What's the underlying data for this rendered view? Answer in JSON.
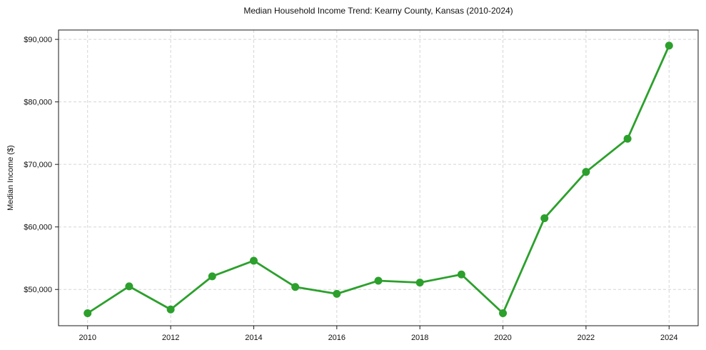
{
  "chart_data": {
    "type": "line",
    "title": "Median Household Income Trend: Kearny County, Kansas (2010-2024)",
    "ylabel": "Median Income ($)",
    "xlabel": "",
    "x": [
      2010,
      2011,
      2012,
      2013,
      2014,
      2015,
      2016,
      2017,
      2018,
      2019,
      2020,
      2021,
      2022,
      2023,
      2024
    ],
    "series": [
      {
        "name": "Median Household Income",
        "color": "#2ca02c",
        "values": [
          46200,
          50500,
          46800,
          52100,
          54600,
          50400,
          49300,
          51400,
          51100,
          52400,
          46200,
          61400,
          68800,
          74100,
          89000
        ]
      }
    ],
    "xticks": [
      2010,
      2012,
      2014,
      2016,
      2018,
      2020,
      2022,
      2024
    ],
    "xtick_labels": [
      "2010",
      "2012",
      "2014",
      "2016",
      "2018",
      "2020",
      "2022",
      "2024"
    ],
    "yticks": [
      50000,
      60000,
      70000,
      80000,
      90000
    ],
    "ytick_labels": [
      "$50,000",
      "$60,000",
      "$70,000",
      "$80,000",
      "$90,000"
    ],
    "xlim": [
      2009.3,
      2024.7
    ],
    "ylim": [
      44200,
      91500
    ],
    "grid": "dashed",
    "legend_position": "none",
    "marker": "circle",
    "marker_radius": 5.5,
    "line_width": 2.8,
    "background": "#ffffff"
  }
}
